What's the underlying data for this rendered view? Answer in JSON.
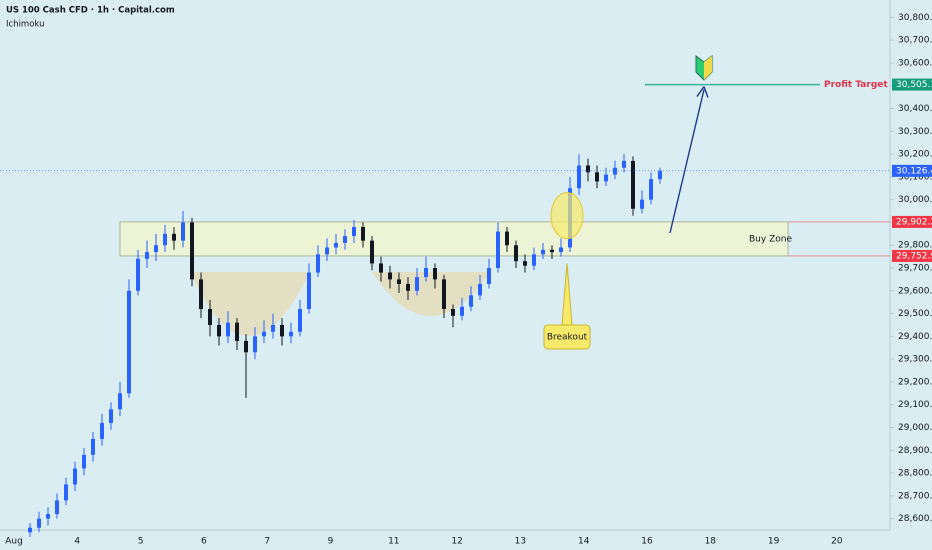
{
  "chart_data": {
    "type": "candlestick",
    "title": "US 100 Cash CFD · 1h · Capital.com",
    "subtitle": "Ichimoku",
    "categories": [
      "Aug",
      "4",
      "5",
      "6",
      "7",
      "9",
      "11",
      "12",
      "13",
      "14",
      "16",
      "18",
      "19",
      "20"
    ],
    "candles": [
      [
        28540,
        28580,
        28520,
        28560
      ],
      [
        28560,
        28630,
        28540,
        28600
      ],
      [
        28600,
        28650,
        28570,
        28620
      ],
      [
        28620,
        28710,
        28600,
        28680
      ],
      [
        28680,
        28780,
        28660,
        28750
      ],
      [
        28750,
        28850,
        28720,
        28820
      ],
      [
        28820,
        28910,
        28790,
        28880
      ],
      [
        28880,
        28980,
        28850,
        28950
      ],
      [
        28950,
        29060,
        28920,
        29020
      ],
      [
        29020,
        29110,
        28990,
        29080
      ],
      [
        29080,
        29200,
        29050,
        29150
      ],
      [
        29150,
        29650,
        29130,
        29600
      ],
      [
        29600,
        29780,
        29580,
        29740
      ],
      [
        29740,
        29820,
        29700,
        29770
      ],
      [
        29770,
        29850,
        29730,
        29800
      ],
      [
        29800,
        29890,
        29770,
        29850
      ],
      [
        29850,
        29880,
        29780,
        29820
      ],
      [
        29820,
        29950,
        29790,
        29900
      ],
      [
        29900,
        29920,
        29620,
        29650
      ],
      [
        29650,
        29680,
        29480,
        29520
      ],
      [
        29520,
        29560,
        29400,
        29450
      ],
      [
        29450,
        29480,
        29360,
        29400
      ],
      [
        29400,
        29510,
        29370,
        29460
      ],
      [
        29460,
        29480,
        29340,
        29380
      ],
      [
        29380,
        29410,
        29130,
        29330
      ],
      [
        29330,
        29440,
        29300,
        29400
      ],
      [
        29400,
        29470,
        29370,
        29420
      ],
      [
        29420,
        29500,
        29390,
        29450
      ],
      [
        29450,
        29480,
        29360,
        29400
      ],
      [
        29400,
        29460,
        29370,
        29420
      ],
      [
        29420,
        29560,
        29400,
        29520
      ],
      [
        29520,
        29720,
        29500,
        29680
      ],
      [
        29680,
        29800,
        29660,
        29760
      ],
      [
        29760,
        29830,
        29730,
        29790
      ],
      [
        29790,
        29850,
        29760,
        29810
      ],
      [
        29810,
        29870,
        29780,
        29840
      ],
      [
        29840,
        29910,
        29810,
        29880
      ],
      [
        29880,
        29900,
        29790,
        29820
      ],
      [
        29820,
        29840,
        29690,
        29720
      ],
      [
        29720,
        29750,
        29640,
        29680
      ],
      [
        29680,
        29710,
        29610,
        29650
      ],
      [
        29650,
        29680,
        29590,
        29630
      ],
      [
        29630,
        29660,
        29560,
        29600
      ],
      [
        29600,
        29700,
        29580,
        29660
      ],
      [
        29660,
        29750,
        29640,
        29700
      ],
      [
        29700,
        29720,
        29610,
        29650
      ],
      [
        29650,
        29670,
        29480,
        29520
      ],
      [
        29520,
        29540,
        29440,
        29490
      ],
      [
        29490,
        29570,
        29470,
        29530
      ],
      [
        29530,
        29620,
        29510,
        29580
      ],
      [
        29580,
        29670,
        29560,
        29630
      ],
      [
        29630,
        29740,
        29610,
        29700
      ],
      [
        29700,
        29900,
        29680,
        29860
      ],
      [
        29860,
        29880,
        29770,
        29800
      ],
      [
        29800,
        29820,
        29700,
        29730
      ],
      [
        29730,
        29760,
        29680,
        29710
      ],
      [
        29710,
        29790,
        29690,
        29760
      ],
      [
        29760,
        29810,
        29740,
        29780
      ],
      [
        29780,
        29800,
        29740,
        29770
      ],
      [
        29770,
        29830,
        29750,
        29790
      ],
      [
        29790,
        30100,
        29770,
        30050
      ],
      [
        30050,
        30200,
        30020,
        30150
      ],
      [
        30150,
        30180,
        30080,
        30120
      ],
      [
        30120,
        30150,
        30050,
        30080
      ],
      [
        30080,
        30140,
        30060,
        30110
      ],
      [
        30110,
        30170,
        30090,
        30140
      ],
      [
        30140,
        30200,
        30120,
        30170
      ],
      [
        30170,
        30190,
        29930,
        29960
      ],
      [
        29960,
        30040,
        29940,
        30000
      ],
      [
        30000,
        30120,
        29980,
        30090
      ],
      [
        30090,
        30140,
        30070,
        30126.4
      ]
    ],
    "up_color": "#2962ff",
    "down_color": "#131722",
    "last_price_label": "30,126.4",
    "buy_zone": {
      "label": "Buy Zone",
      "low": {
        "value": 29752.9,
        "label": "29,752.9"
      },
      "high": {
        "value": 29902.2,
        "label": "29,902.2"
      }
    },
    "profit_target": {
      "label": "Profit Target",
      "value": 30505.1,
      "value_label": "30,505.1"
    },
    "breakout_label": "Breakout",
    "ylim": [
      28550,
      30850
    ],
    "yticks": [
      {
        "value": 28600,
        "label": "28,600.0"
      },
      {
        "value": 28700,
        "label": "28,700.0"
      },
      {
        "value": 28800,
        "label": "28,800.0"
      },
      {
        "value": 28900,
        "label": "28,900.0"
      },
      {
        "value": 29000,
        "label": "29,000.0"
      },
      {
        "value": 29100,
        "label": "29,100.0"
      },
      {
        "value": 29200,
        "label": "29,200.0"
      },
      {
        "value": 29300,
        "label": "29,300.0"
      },
      {
        "value": 29400,
        "label": "29,400.0"
      },
      {
        "value": 29500,
        "label": "29,500.0"
      },
      {
        "value": 29600,
        "label": "29,600.0"
      },
      {
        "value": 29700,
        "label": "29,700.0"
      },
      {
        "value": 29800,
        "label": "29,800.0"
      },
      {
        "value": 29900,
        "label": "29,900.0"
      },
      {
        "value": 30000,
        "label": "30,000.0"
      },
      {
        "value": 30100,
        "label": "30,100.0"
      },
      {
        "value": 30200,
        "label": "30,200.0"
      },
      {
        "value": 30300,
        "label": "30,300.0"
      },
      {
        "value": 30400,
        "label": "30,400.0"
      },
      {
        "value": 30500,
        "label": "30,500.0"
      },
      {
        "value": 30600,
        "label": "30,600.0"
      },
      {
        "value": 30700,
        "label": "30,700.0"
      },
      {
        "value": 30800,
        "label": "30,800.0"
      }
    ]
  }
}
